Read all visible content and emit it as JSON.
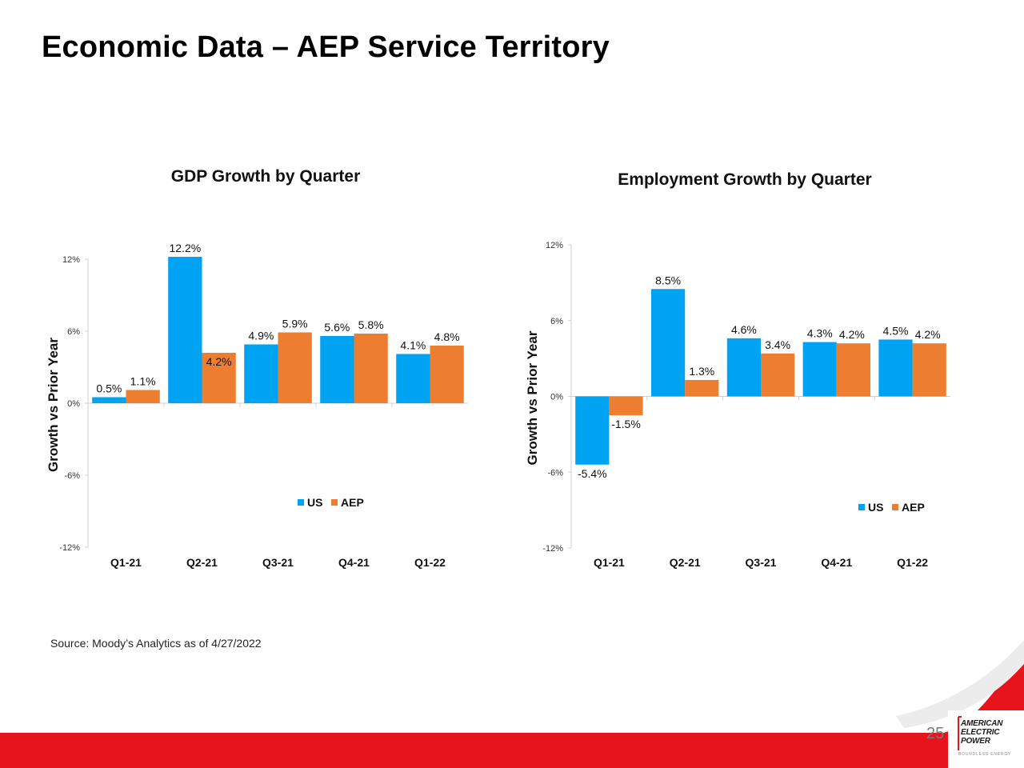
{
  "page": {
    "title": "Economic Data – AEP Service Territory",
    "source": "Source: Moody’s Analytics as of 4/27/2022",
    "page_number": "25"
  },
  "logo": {
    "lines": [
      "AMERICAN",
      "ELECTRIC",
      "POWER"
    ],
    "tagline": "BOUNDLESS ENERGY"
  },
  "colors": {
    "us": "#00A2F2",
    "aep": "#ED7D31",
    "footer_red": "#E8141B",
    "axis": "#d0d0d0"
  },
  "chart_data": [
    {
      "type": "bar",
      "title": "GDP Growth by Quarter",
      "ylabel": "Growth vs Prior Year",
      "xlabel": "",
      "categories": [
        "Q1-21",
        "Q2-21",
        "Q3-21",
        "Q4-21",
        "Q1-22"
      ],
      "series": [
        {
          "name": "US",
          "values": [
            0.5,
            12.2,
            4.9,
            5.6,
            4.1
          ],
          "labels": [
            "0.5%",
            "12.2%",
            "4.9%",
            "5.6%",
            "4.1%"
          ]
        },
        {
          "name": "AEP",
          "values": [
            1.1,
            4.2,
            5.9,
            5.8,
            4.8
          ],
          "labels": [
            "1.1%",
            "4.2%",
            "5.9%",
            "5.8%",
            "4.8%"
          ]
        }
      ],
      "ylim": [
        -12,
        12
      ],
      "yticks": [
        12,
        6,
        0,
        -6,
        -12
      ],
      "ytick_labels": [
        "12%",
        "6%",
        "0%",
        "-6%",
        "-12%"
      ],
      "legend": "bottom",
      "grid": false
    },
    {
      "type": "bar",
      "title": "Employment Growth by Quarter",
      "ylabel": "Growth vs Prior Year",
      "xlabel": "",
      "categories": [
        "Q1-21",
        "Q2-21",
        "Q3-21",
        "Q4-21",
        "Q1-22"
      ],
      "series": [
        {
          "name": "US",
          "values": [
            -5.4,
            8.5,
            4.6,
            4.3,
            4.5
          ],
          "labels": [
            "-5.4%",
            "8.5%",
            "4.6%",
            "4.3%",
            "4.5%"
          ]
        },
        {
          "name": "AEP",
          "values": [
            -1.5,
            1.3,
            3.4,
            4.2,
            4.2
          ],
          "labels": [
            "-1.5%",
            "1.3%",
            "3.4%",
            "4.2%",
            "4.2%"
          ]
        }
      ],
      "ylim": [
        -12,
        12
      ],
      "yticks": [
        12,
        6,
        0,
        -6,
        -12
      ],
      "ytick_labels": [
        "12%",
        "6%",
        "0%",
        "-6%",
        "-12%"
      ],
      "legend": "bottom-right",
      "grid": false
    }
  ]
}
